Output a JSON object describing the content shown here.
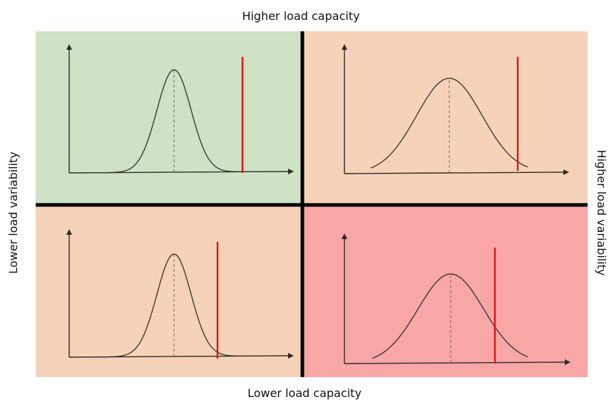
{
  "labels": {
    "top": "Higher load capacity",
    "bottom": "Lower load capacity",
    "left": "Lower  load variability",
    "right": "Higher load variability"
  },
  "colors": {
    "top_left": "#cfe2c4",
    "top_right": "#f6d3b8",
    "bottom_left": "#f6d3b8",
    "bottom_right": "#f9a6a6",
    "divider": "#000000",
    "axis": "#2b2b2b",
    "curve": "#2f2f2f",
    "capacity_line": "#e3130f"
  }
}
